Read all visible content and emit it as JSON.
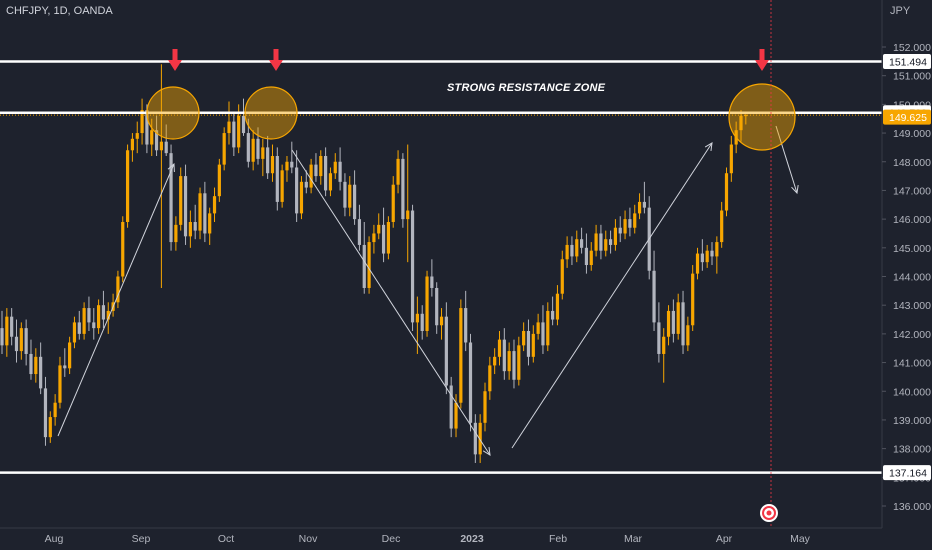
{
  "symbol_label": "CHFJPY, 1D, OANDA",
  "currency_label": "JPY",
  "zone_label": "STRONG RESISTANCE ZONE",
  "colors": {
    "background": "#1e222d",
    "up_candle": "#f7a600",
    "down_candle": "#b2b5be",
    "level_line": "#ffffff",
    "arrow_marker": "#f23645",
    "circle_fill": "#f7a600",
    "current_price_tag": "#f7a600"
  },
  "chart_data": {
    "type": "candlestick",
    "price_axis_ticks": [
      "152.000",
      "151.000",
      "150.000",
      "149.000",
      "148.000",
      "147.000",
      "146.000",
      "145.000",
      "144.000",
      "143.000",
      "142.000",
      "141.000",
      "140.000",
      "139.000",
      "138.000",
      "137.000",
      "136.000"
    ],
    "time_axis_labels": [
      "Aug",
      "Sep",
      "Oct",
      "Nov",
      "Dec",
      "2023",
      "Feb",
      "Mar",
      "Apr",
      "May"
    ],
    "ylim": [
      135.6,
      152.7
    ],
    "horizontal_levels": [
      {
        "value": 151.494,
        "label": "151.494"
      },
      {
        "value": 149.709,
        "label": "149.709"
      },
      {
        "value": 137.164,
        "label": "137.164"
      }
    ],
    "current_price": {
      "value": 149.625,
      "label": "149.625"
    },
    "highlight_circles": [
      {
        "date": "Sep 15",
        "price": 149.9
      },
      {
        "date": "Oct 20",
        "price": 149.9
      },
      {
        "date": "Apr 17",
        "price": 149.7
      }
    ],
    "down_markers": [
      {
        "date": "Sep 15"
      },
      {
        "date": "Oct 20"
      },
      {
        "date": "Apr 17"
      }
    ],
    "candles_ohlc": [
      [
        142.2,
        142.8,
        141.3,
        141.6
      ],
      [
        141.6,
        142.9,
        141.2,
        142.6
      ],
      [
        142.6,
        142.9,
        141.6,
        141.9
      ],
      [
        141.9,
        142.5,
        141.0,
        141.4
      ],
      [
        141.4,
        142.4,
        141.1,
        142.2
      ],
      [
        142.2,
        142.5,
        140.9,
        141.3
      ],
      [
        141.3,
        141.8,
        140.4,
        140.6
      ],
      [
        140.6,
        141.5,
        140.3,
        141.2
      ],
      [
        141.2,
        141.7,
        139.9,
        140.1
      ],
      [
        140.1,
        140.5,
        138.1,
        138.4
      ],
      [
        138.4,
        139.3,
        138.2,
        139.1
      ],
      [
        139.1,
        139.9,
        138.8,
        139.6
      ],
      [
        139.6,
        141.2,
        139.4,
        140.9
      ],
      [
        140.9,
        141.5,
        140.5,
        140.8
      ],
      [
        140.8,
        141.9,
        140.6,
        141.7
      ],
      [
        141.7,
        142.6,
        141.5,
        142.4
      ],
      [
        142.4,
        142.8,
        141.8,
        142.0
      ],
      [
        142.0,
        143.1,
        141.8,
        142.9
      ],
      [
        142.9,
        143.3,
        142.1,
        142.4
      ],
      [
        142.4,
        142.9,
        141.8,
        142.2
      ],
      [
        142.2,
        143.2,
        142.0,
        143.0
      ],
      [
        143.0,
        143.5,
        142.2,
        142.5
      ],
      [
        142.5,
        143.1,
        142.0,
        142.8
      ],
      [
        142.8,
        143.4,
        142.6,
        143.1
      ],
      [
        143.1,
        144.2,
        142.9,
        144.0
      ],
      [
        144.0,
        146.1,
        143.8,
        145.9
      ],
      [
        145.9,
        148.6,
        145.7,
        148.4
      ],
      [
        148.4,
        149.0,
        148.0,
        148.8
      ],
      [
        148.8,
        149.4,
        148.3,
        149.0
      ],
      [
        149.0,
        150.2,
        148.6,
        149.8
      ],
      [
        149.8,
        150.0,
        148.3,
        148.6
      ],
      [
        148.6,
        149.5,
        148.2,
        149.1
      ],
      [
        149.1,
        149.6,
        148.2,
        148.4
      ],
      [
        148.4,
        151.4,
        143.6,
        148.7
      ],
      [
        148.7,
        149.3,
        148.2,
        148.3
      ],
      [
        148.3,
        148.6,
        144.9,
        145.2
      ],
      [
        145.2,
        146.1,
        144.9,
        145.8
      ],
      [
        145.8,
        147.8,
        145.6,
        147.5
      ],
      [
        147.5,
        147.9,
        145.1,
        145.4
      ],
      [
        145.4,
        146.3,
        145.0,
        145.9
      ],
      [
        145.9,
        146.5,
        145.3,
        145.6
      ],
      [
        145.6,
        147.1,
        145.3,
        146.9
      ],
      [
        146.9,
        147.3,
        145.2,
        145.5
      ],
      [
        145.5,
        146.4,
        145.1,
        146.2
      ],
      [
        146.2,
        147.1,
        145.9,
        146.8
      ],
      [
        146.8,
        148.1,
        146.6,
        147.9
      ],
      [
        147.9,
        149.2,
        147.7,
        149.0
      ],
      [
        149.0,
        150.1,
        148.6,
        149.4
      ],
      [
        149.4,
        149.7,
        148.2,
        148.5
      ],
      [
        148.5,
        150.0,
        148.3,
        149.6
      ],
      [
        149.6,
        150.2,
        148.9,
        149.0
      ],
      [
        149.0,
        149.5,
        147.8,
        148.0
      ],
      [
        148.0,
        149.1,
        147.7,
        148.8
      ],
      [
        148.8,
        149.2,
        147.9,
        148.1
      ],
      [
        148.1,
        148.8,
        147.5,
        148.5
      ],
      [
        148.5,
        148.9,
        147.4,
        147.6
      ],
      [
        147.6,
        148.6,
        147.3,
        148.2
      ],
      [
        148.2,
        148.5,
        146.3,
        146.6
      ],
      [
        146.6,
        147.9,
        146.4,
        147.7
      ],
      [
        147.7,
        148.2,
        147.3,
        148.0
      ],
      [
        148.0,
        148.7,
        147.6,
        147.8
      ],
      [
        147.8,
        148.4,
        145.9,
        146.2
      ],
      [
        146.2,
        147.5,
        146.0,
        147.3
      ],
      [
        147.3,
        147.7,
        146.9,
        147.1
      ],
      [
        147.1,
        148.1,
        146.9,
        147.9
      ],
      [
        147.9,
        148.3,
        147.3,
        147.5
      ],
      [
        147.5,
        148.4,
        147.2,
        148.2
      ],
      [
        148.2,
        148.5,
        146.8,
        147.0
      ],
      [
        147.0,
        147.8,
        146.8,
        147.6
      ],
      [
        147.6,
        148.3,
        147.4,
        148.0
      ],
      [
        148.0,
        148.5,
        147.0,
        147.3
      ],
      [
        147.3,
        147.6,
        146.1,
        146.4
      ],
      [
        146.4,
        147.5,
        146.1,
        147.2
      ],
      [
        147.2,
        147.7,
        145.8,
        146.0
      ],
      [
        146.0,
        146.5,
        144.9,
        145.1
      ],
      [
        145.1,
        145.9,
        143.4,
        143.6
      ],
      [
        143.6,
        145.4,
        143.4,
        145.2
      ],
      [
        145.2,
        145.8,
        144.8,
        145.5
      ],
      [
        145.5,
        146.2,
        145.3,
        145.8
      ],
      [
        145.8,
        146.4,
        144.5,
        144.8
      ],
      [
        144.8,
        146.1,
        144.6,
        145.9
      ],
      [
        145.9,
        147.5,
        145.7,
        147.2
      ],
      [
        147.2,
        148.4,
        146.9,
        148.1
      ],
      [
        148.1,
        148.3,
        145.7,
        146.0
      ],
      [
        146.0,
        148.6,
        144.5,
        146.3
      ],
      [
        146.3,
        146.5,
        142.1,
        142.4
      ],
      [
        142.4,
        143.3,
        141.3,
        142.7
      ],
      [
        142.7,
        143.0,
        141.8,
        142.1
      ],
      [
        142.1,
        144.2,
        141.9,
        144.0
      ],
      [
        144.0,
        144.6,
        143.3,
        143.6
      ],
      [
        143.6,
        143.8,
        142.0,
        142.3
      ],
      [
        142.3,
        142.9,
        141.8,
        142.6
      ],
      [
        142.6,
        143.1,
        139.9,
        140.2
      ],
      [
        140.2,
        140.5,
        138.4,
        138.7
      ],
      [
        138.7,
        139.9,
        138.4,
        139.6
      ],
      [
        139.6,
        143.2,
        139.4,
        142.9
      ],
      [
        142.9,
        143.5,
        141.4,
        141.7
      ],
      [
        141.7,
        142.0,
        138.6,
        138.9
      ],
      [
        138.9,
        139.2,
        137.5,
        137.8
      ],
      [
        137.8,
        139.2,
        137.5,
        138.9
      ],
      [
        138.9,
        140.3,
        138.6,
        140.0
      ],
      [
        140.0,
        141.2,
        139.7,
        140.9
      ],
      [
        140.9,
        141.5,
        140.6,
        141.2
      ],
      [
        141.2,
        142.1,
        140.9,
        141.8
      ],
      [
        141.8,
        142.2,
        140.4,
        140.7
      ],
      [
        140.7,
        141.7,
        140.4,
        141.4
      ],
      [
        141.4,
        141.8,
        140.1,
        140.4
      ],
      [
        140.4,
        141.9,
        140.2,
        141.6
      ],
      [
        141.6,
        142.4,
        141.4,
        142.1
      ],
      [
        142.1,
        142.5,
        140.9,
        141.2
      ],
      [
        141.2,
        142.3,
        141.0,
        142.0
      ],
      [
        142.0,
        142.7,
        141.8,
        142.4
      ],
      [
        142.4,
        143.0,
        141.3,
        141.6
      ],
      [
        141.6,
        143.1,
        141.4,
        142.8
      ],
      [
        142.8,
        143.3,
        142.3,
        142.5
      ],
      [
        142.5,
        143.7,
        142.3,
        143.4
      ],
      [
        143.4,
        144.9,
        143.2,
        144.6
      ],
      [
        144.6,
        145.4,
        144.3,
        145.1
      ],
      [
        145.1,
        145.4,
        144.4,
        144.7
      ],
      [
        144.7,
        145.6,
        144.5,
        145.3
      ],
      [
        145.3,
        145.7,
        144.8,
        145.0
      ],
      [
        145.0,
        145.5,
        144.1,
        144.4
      ],
      [
        144.4,
        145.2,
        144.2,
        144.9
      ],
      [
        144.9,
        145.8,
        144.7,
        145.5
      ],
      [
        145.5,
        145.8,
        144.6,
        144.9
      ],
      [
        144.9,
        145.6,
        144.7,
        145.3
      ],
      [
        145.3,
        145.6,
        144.8,
        145.1
      ],
      [
        145.1,
        146.0,
        144.9,
        145.7
      ],
      [
        145.7,
        146.1,
        145.2,
        145.5
      ],
      [
        145.5,
        146.3,
        145.3,
        146.0
      ],
      [
        146.0,
        146.4,
        145.4,
        145.7
      ],
      [
        145.7,
        146.5,
        145.5,
        146.2
      ],
      [
        146.2,
        146.9,
        146.0,
        146.6
      ],
      [
        146.6,
        147.3,
        146.2,
        146.4
      ],
      [
        146.4,
        146.8,
        143.9,
        144.2
      ],
      [
        144.2,
        144.9,
        142.1,
        142.4
      ],
      [
        142.4,
        143.1,
        141.0,
        141.3
      ],
      [
        141.3,
        142.2,
        140.3,
        141.9
      ],
      [
        141.9,
        143.0,
        141.6,
        142.8
      ],
      [
        142.8,
        143.2,
        141.7,
        142.0
      ],
      [
        142.0,
        143.4,
        141.8,
        143.1
      ],
      [
        143.1,
        143.5,
        141.3,
        141.6
      ],
      [
        141.6,
        142.6,
        141.4,
        142.3
      ],
      [
        142.3,
        144.4,
        142.1,
        144.1
      ],
      [
        144.1,
        145.0,
        143.9,
        144.8
      ],
      [
        144.8,
        145.3,
        144.2,
        144.5
      ],
      [
        144.5,
        145.1,
        144.3,
        144.9
      ],
      [
        144.9,
        145.2,
        144.4,
        144.7
      ],
      [
        144.7,
        145.4,
        144.1,
        145.2
      ],
      [
        145.2,
        146.6,
        145.0,
        146.3
      ],
      [
        146.3,
        147.8,
        146.1,
        147.6
      ],
      [
        147.6,
        148.9,
        147.3,
        148.6
      ],
      [
        148.6,
        149.4,
        148.3,
        149.1
      ],
      [
        149.1,
        149.8,
        148.7,
        149.6
      ],
      [
        149.6,
        149.7,
        149.3,
        149.625
      ]
    ]
  }
}
